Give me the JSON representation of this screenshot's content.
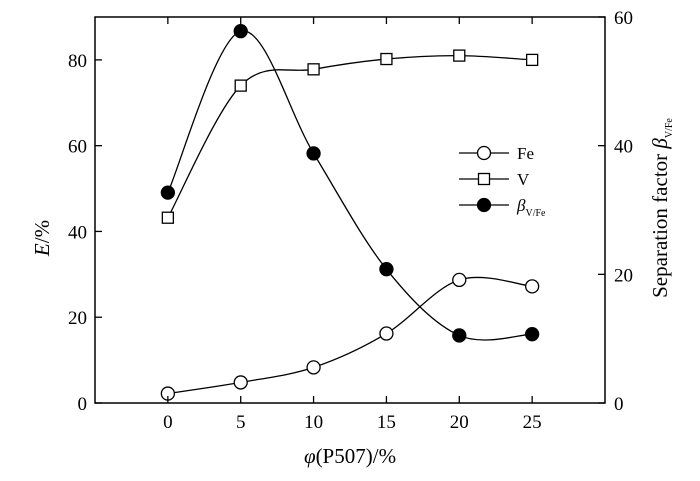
{
  "chart_data": {
    "type": "line",
    "x": [
      0,
      5,
      10,
      15,
      20,
      25
    ],
    "xlim": [
      -5,
      30
    ],
    "xticks": [
      0,
      5,
      10,
      15,
      20,
      25
    ],
    "xlabel": {
      "main": "φ",
      "rest": "(P507)/%"
    },
    "ylabel_left": {
      "main": "E",
      "rest": "/%"
    },
    "ylabel_right": {
      "main": "Separation factor ",
      "beta": "β",
      "sub": "V/Fe"
    },
    "ylim_left": [
      0,
      90
    ],
    "yticks_left": [
      0,
      20,
      40,
      60,
      80
    ],
    "ylim_right": [
      0,
      60
    ],
    "yticks_right": [
      0,
      20,
      40,
      60
    ],
    "legend_position": "right-center",
    "series": [
      {
        "name": "Fe",
        "marker": "open-circle",
        "axis": "left",
        "values": [
          2.2,
          4.8,
          8.3,
          16.2,
          28.7,
          27.2
        ]
      },
      {
        "name": "V",
        "marker": "open-square",
        "axis": "left",
        "values": [
          43.2,
          74.0,
          77.8,
          80.2,
          81.0,
          80.0
        ]
      },
      {
        "name": "β",
        "name_sub": "V/Fe",
        "marker": "filled-circle",
        "axis": "right",
        "values": [
          32.7,
          57.8,
          38.8,
          20.8,
          10.5,
          10.7
        ]
      }
    ]
  }
}
